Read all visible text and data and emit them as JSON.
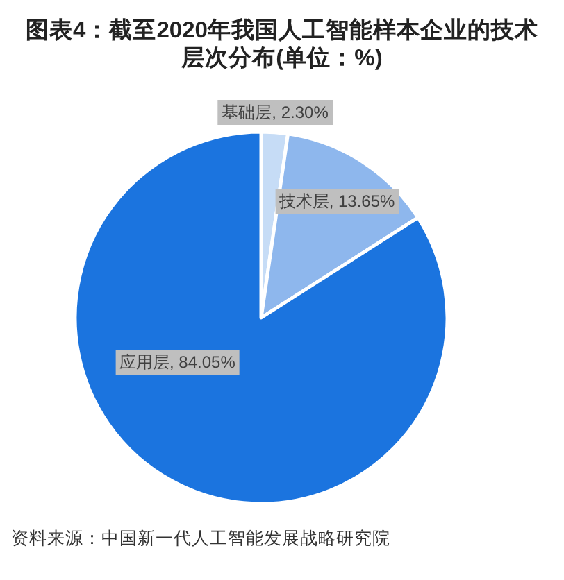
{
  "chart_data": {
    "type": "pie",
    "title": "图表4：截至2020年我国人工智能样本企业的技术层次分布(单位：%)",
    "categories": [
      "基础层",
      "技术层",
      "应用层"
    ],
    "values": [
      2.3,
      13.65,
      84.05
    ],
    "value_labels": [
      "2.30%",
      "13.65%",
      "84.05%"
    ],
    "colors": [
      "#c6dcf6",
      "#8eb7ed",
      "#1b74df"
    ],
    "annotations": [
      "资料来源：中国新一代人工智能发展战略研究院"
    ]
  }
}
